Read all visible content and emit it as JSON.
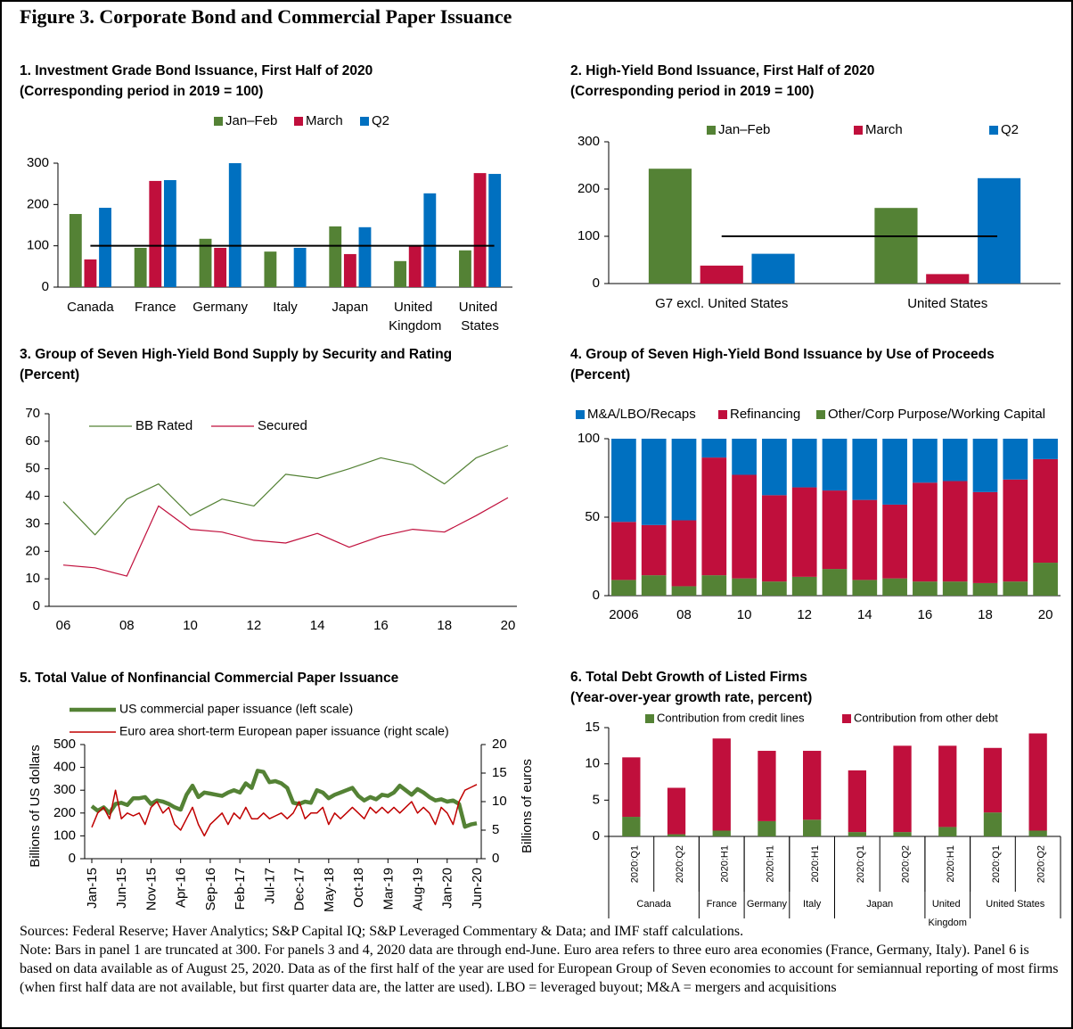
{
  "title": "Figure 3. Corporate Bond and Commercial Paper Issuance",
  "chart_data": [
    {
      "type": "bar",
      "title": "1. Investment Grade Bond Issuance, First Half of 2020",
      "subtitle": "(Corresponding period in 2019 = 100)",
      "categories": [
        "Canada",
        "France",
        "Germany",
        "Italy",
        "Japan",
        "United Kingdom",
        "United States"
      ],
      "series": [
        {
          "name": "Jan–Feb",
          "color": "#548235",
          "values": [
            177,
            95,
            117,
            86,
            147,
            63,
            89
          ]
        },
        {
          "name": "March",
          "color": "#c00f3c",
          "values": [
            67,
            257,
            95,
            null,
            80,
            101,
            276
          ]
        },
        {
          "name": "Q2",
          "color": "#0070c0",
          "values": [
            192,
            259,
            300,
            95,
            145,
            227,
            274
          ]
        }
      ],
      "reference_line": 100,
      "ylim": [
        0,
        300
      ],
      "yticks": [
        0,
        100,
        200,
        300
      ]
    },
    {
      "type": "bar",
      "title": "2. High-Yield Bond Issuance, First Half of 2020",
      "subtitle": "(Corresponding period in 2019 = 100)",
      "categories": [
        "G7 excl. United States",
        "United States"
      ],
      "series": [
        {
          "name": "Jan–Feb",
          "color": "#548235",
          "values": [
            243,
            160
          ]
        },
        {
          "name": "March",
          "color": "#c00f3c",
          "values": [
            38,
            20
          ]
        },
        {
          "name": "Q2",
          "color": "#0070c0",
          "values": [
            63,
            223
          ]
        }
      ],
      "reference_line": 100,
      "ylim": [
        0,
        300
      ],
      "yticks": [
        0,
        100,
        200,
        300
      ]
    },
    {
      "type": "line",
      "title": "3. Group of Seven High-Yield Bond Supply by Security and Rating",
      "subtitle": "(Percent)",
      "categories": [
        "06",
        null,
        "08",
        null,
        "10",
        null,
        "12",
        null,
        "14",
        null,
        "16",
        null,
        "18",
        null,
        "20"
      ],
      "series": [
        {
          "name": "BB Rated",
          "color": "#548235",
          "values": [
            38,
            26,
            39,
            44.5,
            33,
            39,
            36.5,
            48,
            46.5,
            50,
            54,
            51.5,
            44.5,
            54,
            58.5
          ]
        },
        {
          "name": "Secured",
          "color": "#c00f3c",
          "values": [
            15,
            14,
            11,
            36.5,
            28,
            27,
            24,
            23,
            26.5,
            21.5,
            25.5,
            28,
            27,
            33,
            39.5
          ]
        }
      ],
      "ylim": [
        0,
        70
      ],
      "yticks": [
        0,
        10,
        20,
        30,
        40,
        50,
        60,
        70
      ]
    },
    {
      "type": "stacked_bar",
      "title": "4. Group of Seven High-Yield Bond Issuance by Use of Proceeds",
      "subtitle": "(Percent)",
      "categories": [
        "2006",
        null,
        "08",
        null,
        "10",
        null,
        "12",
        null,
        "14",
        null,
        "16",
        null,
        "18",
        null,
        "20"
      ],
      "series": [
        {
          "name": "M&A/LBO/Recaps",
          "color": "#0070c0",
          "values": [
            53,
            55,
            52,
            12,
            23,
            36,
            31,
            33,
            39,
            42,
            28,
            27,
            34,
            26,
            13
          ]
        },
        {
          "name": "Refinancing",
          "color": "#c00f3c",
          "values": [
            37,
            32,
            42,
            75,
            66,
            55,
            57,
            50,
            51,
            47,
            63,
            64,
            58,
            65,
            66
          ]
        },
        {
          "name": "Other/Corp Purpose/Working Capital",
          "color": "#548235",
          "values": [
            10,
            13,
            6,
            13,
            11,
            9,
            12,
            17,
            10,
            11,
            9,
            9,
            8,
            9,
            21
          ]
        }
      ],
      "stack_from": "last",
      "ylim": [
        0,
        100
      ],
      "yticks": [
        0,
        50,
        100
      ]
    },
    {
      "type": "line",
      "title": "5. Total Value of Nonfinancial Commercial Paper Issuance",
      "categories": [
        "Jan-15",
        null,
        null,
        null,
        null,
        "Jun-15",
        null,
        null,
        null,
        null,
        "Nov-15",
        null,
        null,
        null,
        null,
        "Apr-16",
        null,
        null,
        null,
        null,
        "Sep-16",
        null,
        null,
        null,
        null,
        "Feb-17",
        null,
        null,
        null,
        null,
        "Jul-17",
        null,
        null,
        null,
        null,
        "Dec-17",
        null,
        null,
        null,
        null,
        "May-18",
        null,
        null,
        null,
        null,
        "Oct-18",
        null,
        null,
        null,
        null,
        "Mar-19",
        null,
        null,
        null,
        null,
        "Aug-19",
        null,
        null,
        null,
        null,
        "Jan-20",
        null,
        null,
        null,
        null,
        "Jun-20"
      ],
      "series": [
        {
          "name": "US commercial paper issuance (left scale)",
          "color": "#548235",
          "values": [
            230,
            210,
            225,
            200,
            240,
            245,
            235,
            265,
            265,
            270,
            240,
            255,
            250,
            240,
            225,
            215,
            280,
            320,
            270,
            290,
            285,
            280,
            275,
            290,
            300,
            290,
            330,
            310,
            385,
            380,
            335,
            340,
            330,
            310,
            245,
            240,
            250,
            245,
            300,
            290,
            265,
            280,
            290,
            300,
            310,
            275,
            255,
            270,
            260,
            280,
            275,
            290,
            320,
            300,
            280,
            305,
            290,
            270,
            255,
            260,
            250,
            255,
            240,
            140,
            150,
            155
          ]
        },
        {
          "name": "Euro area short-term European paper issuance (right scale)",
          "color": "#c00000",
          "axis": "y2",
          "values": [
            5.5,
            8,
            9,
            7,
            12,
            7,
            8,
            7.5,
            8,
            6,
            9,
            10,
            8,
            9,
            6,
            5,
            7,
            9,
            6,
            4,
            6,
            7,
            8,
            6,
            8,
            7,
            9,
            7,
            7,
            8,
            7,
            7.5,
            8,
            7,
            8,
            10,
            7,
            8,
            8,
            9,
            6,
            8,
            7,
            8,
            9,
            8,
            7,
            9,
            8,
            9,
            8,
            9,
            8,
            9,
            10,
            8,
            9,
            8,
            6,
            9,
            8,
            6,
            10,
            12,
            12.5,
            13
          ]
        }
      ],
      "ylabel": "Billions of US dollars",
      "y2label": "Billions of euros",
      "ylim": [
        0,
        500
      ],
      "yticks": [
        0,
        100,
        200,
        300,
        400,
        500
      ],
      "y2lim": [
        0,
        20
      ],
      "y2ticks": [
        0,
        5,
        10,
        15,
        20
      ]
    },
    {
      "type": "stacked_bar",
      "title": "6. Total Debt Growth of Listed Firms",
      "subtitle": "(Year-over-year growth rate, percent)",
      "groups": [
        {
          "name": "Canada",
          "categories": [
            "2020:Q1",
            "2020:Q2"
          ]
        },
        {
          "name": "France",
          "categories": [
            "2020:H1"
          ]
        },
        {
          "name": "Germany",
          "categories": [
            "2020:H1"
          ]
        },
        {
          "name": "Italy",
          "categories": [
            "2020:H1"
          ]
        },
        {
          "name": "Japan",
          "categories": [
            "2020:Q1",
            "2020:Q2"
          ]
        },
        {
          "name": "United Kingdom",
          "categories": [
            "2020:H1"
          ]
        },
        {
          "name": "United States",
          "categories": [
            "2020:Q1",
            "2020:Q2"
          ]
        }
      ],
      "series": [
        {
          "name": "Contribution from credit lines",
          "color": "#548235",
          "values": [
            2.7,
            0.3,
            0.8,
            2.1,
            2.3,
            0.6,
            0.6,
            1.3,
            3.3,
            0.8
          ]
        },
        {
          "name": "Contribution from other debt",
          "color": "#c00f3c",
          "values": [
            8.2,
            6.4,
            12.7,
            9.7,
            9.5,
            8.5,
            11.9,
            11.2,
            8.9,
            13.4
          ]
        }
      ],
      "ylim": [
        0,
        15
      ],
      "yticks": [
        0,
        5,
        10,
        15
      ]
    }
  ],
  "sources": "Sources: Federal Reserve; Haver Analytics; S&P Capital IQ; S&P Leveraged Commentary & Data; and IMF staff calculations.",
  "note": "Note: Bars in panel 1 are truncated at 300. For panels 3 and 4, 2020 data are through end-June. Euro area refers to three euro area economies (France, Germany, Italy). Panel 6 is based on data available as of August 25, 2020. Data as of the first half of the year are used for European Group of Seven economies to account for semiannual reporting of most firms (when first half data are not available, but first quarter data are, the latter are used). LBO = leveraged buyout; M&A = mergers and acquisitions"
}
